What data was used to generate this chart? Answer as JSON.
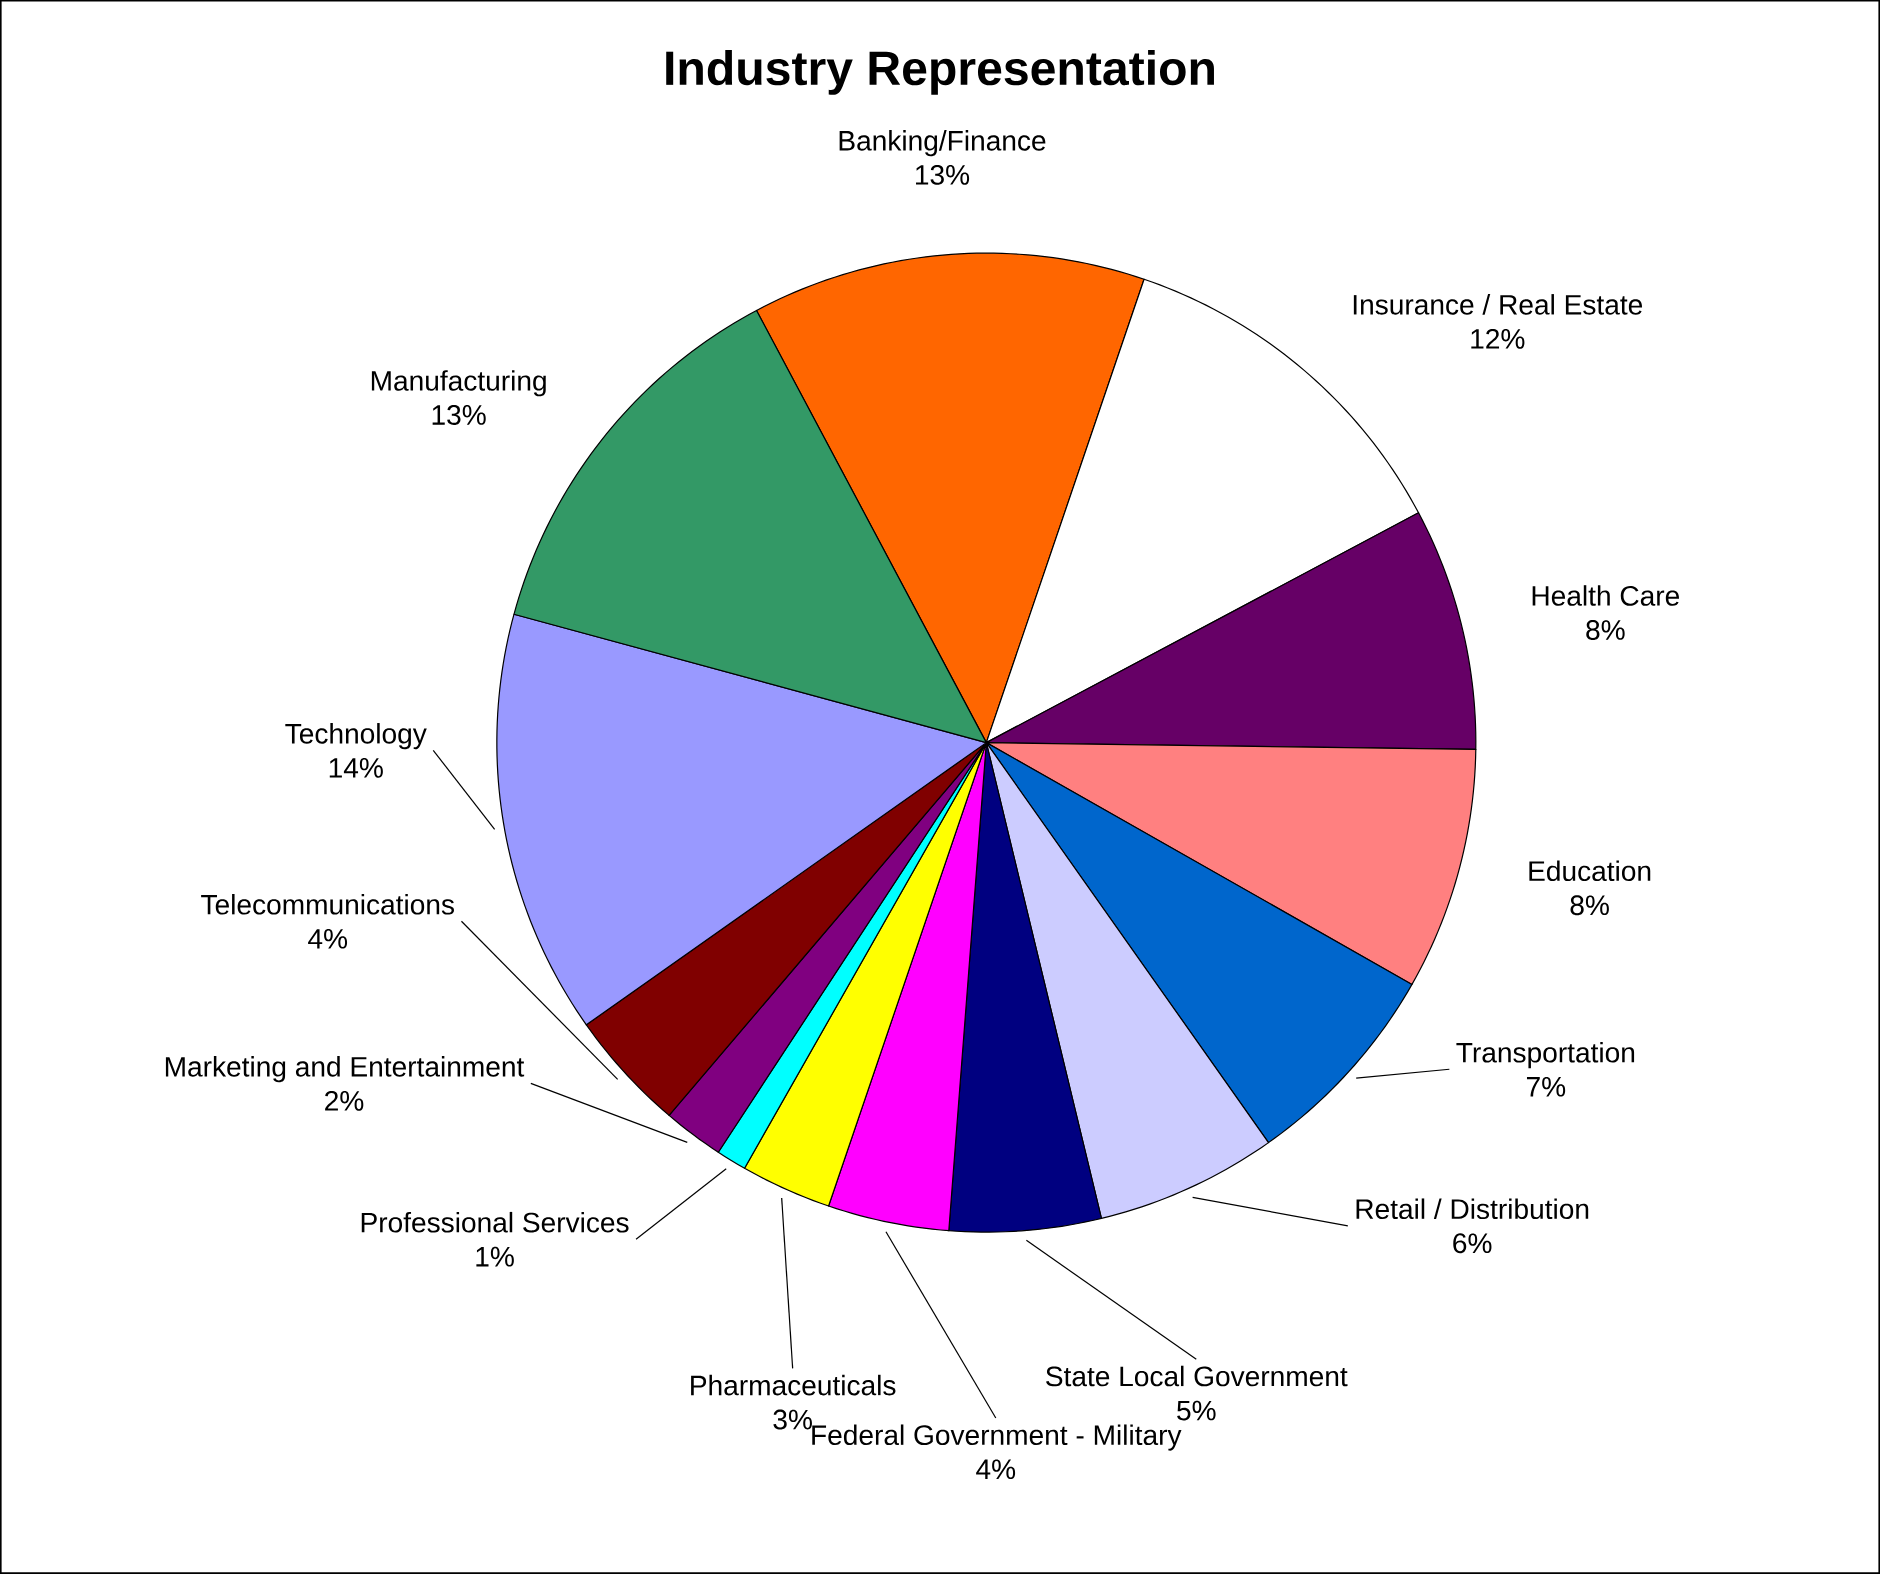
{
  "chart_data": {
    "type": "pie",
    "title": "Industry Representation",
    "categories": [
      "Banking/Finance",
      "Insurance / Real Estate",
      "Health Care",
      "Education",
      "Transportation",
      "Retail / Distribution",
      "State Local Government",
      "Federal Government - Military",
      "Pharmaceuticals",
      "Professional Services",
      "Marketing and Entertainment",
      "Telecommunications",
      "Technology",
      "Manufacturing"
    ],
    "values": [
      13,
      12,
      8,
      8,
      7,
      6,
      5,
      4,
      3,
      1,
      2,
      4,
      14,
      13
    ],
    "value_labels": [
      "13%",
      "12%",
      "8%",
      "8%",
      "7%",
      "6%",
      "5%",
      "4%",
      "3%",
      "1%",
      "2%",
      "4%",
      "14%",
      "13%"
    ],
    "colors": [
      "#ff6600",
      "#ffffff",
      "#660066",
      "#ff8080",
      "#0066cc",
      "#ccccff",
      "#000080",
      "#ff00ff",
      "#ffff00",
      "#00ffff",
      "#800080",
      "#800000",
      "#9999ff",
      "#339966"
    ]
  }
}
